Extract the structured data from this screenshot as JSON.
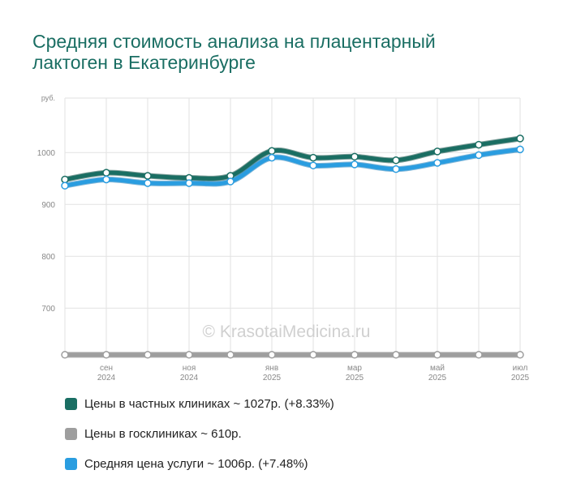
{
  "title": "Средняя стоимость анализа на плацентарный лактоген в Екатеринбурге",
  "watermark": "© KrasotaiMedicina.ru",
  "chart_data": {
    "type": "line",
    "ylabel": "руб.",
    "ylim": [
      605,
      1105
    ],
    "yticks": [
      700,
      800,
      900,
      1000
    ],
    "grid": true,
    "x": [
      "2024-08",
      "2024-09",
      "2024-10",
      "2024-11",
      "2024-12",
      "2025-01",
      "2025-02",
      "2025-03",
      "2025-04",
      "2025-05",
      "2025-06",
      "2025-07"
    ],
    "xticks": [
      {
        "index": 1,
        "month": "сен",
        "year": "2024"
      },
      {
        "index": 3,
        "month": "ноя",
        "year": "2024"
      },
      {
        "index": 5,
        "month": "янв",
        "year": "2025"
      },
      {
        "index": 7,
        "month": "мар",
        "year": "2025"
      },
      {
        "index": 9,
        "month": "май",
        "year": "2025"
      },
      {
        "index": 11,
        "month": "июл",
        "year": "2025"
      }
    ],
    "series": [
      {
        "name": "Цены в частных клиниках",
        "color": "#1a6e63",
        "values": [
          948,
          961,
          955,
          951,
          955,
          1003,
          990,
          992,
          985,
          1002,
          1015,
          1027
        ]
      },
      {
        "name": "Цены в госклиниках",
        "color": "#9e9e9e",
        "values": [
          610,
          610,
          610,
          610,
          610,
          610,
          610,
          610,
          610,
          610,
          610,
          610
        ]
      },
      {
        "name": "Средняя цена услуги",
        "color": "#2a9de0",
        "values": [
          936,
          948,
          941,
          941,
          944,
          990,
          975,
          977,
          968,
          980,
          995,
          1006
        ]
      }
    ]
  },
  "legend": [
    {
      "label": "Цены в частных клиниках ~ 1027р. (+8.33%)",
      "color": "#1a6e63"
    },
    {
      "label": "Цены в госклиниках ~ 610р.",
      "color": "#9e9e9e"
    },
    {
      "label": "Средняя цена услуги ~ 1006р. (+7.48%)",
      "color": "#2a9de0"
    }
  ]
}
